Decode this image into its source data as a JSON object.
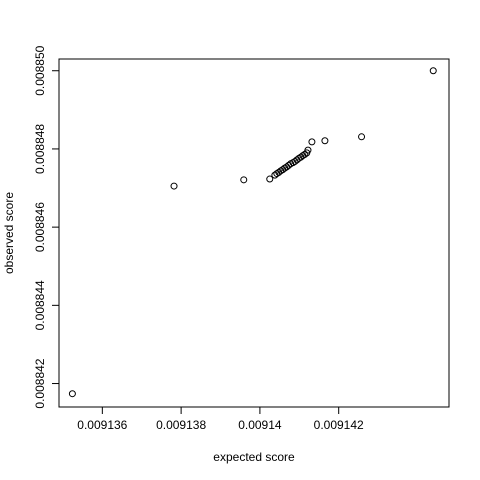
{
  "chart_data": {
    "type": "scatter",
    "xlabel": "expected score",
    "ylabel": "observed score",
    "x": [
      0.00913524,
      0.00913782,
      0.00913959,
      0.00914025,
      0.00914038,
      0.00914043,
      0.00914048,
      0.00914053,
      0.00914058,
      0.00914063,
      0.00914068,
      0.00914073,
      0.00914078,
      0.00914084,
      0.00914089,
      0.00914094,
      0.00914099,
      0.00914104,
      0.00914109,
      0.00914114,
      0.00914119,
      0.00914122,
      0.00914132,
      0.00914165,
      0.00914258,
      0.0091444
    ],
    "values": [
      0.00884174,
      0.00884705,
      0.00884721,
      0.00884723,
      0.00884733,
      0.00884737,
      0.0088474,
      0.00884744,
      0.00884747,
      0.00884751,
      0.00884754,
      0.00884758,
      0.00884762,
      0.00884765,
      0.00884768,
      0.00884772,
      0.00884776,
      0.00884779,
      0.00884783,
      0.00884786,
      0.0088479,
      0.00884797,
      0.00884818,
      0.00884821,
      0.00884831,
      0.00885
    ],
    "color": "#000000",
    "xlim": [
      0.0091349,
      0.0091448
    ],
    "ylim": [
      0.0088414,
      0.0088503
    ],
    "xticks": [
      0.009136,
      0.009138,
      0.00914,
      0.009142
    ],
    "yticks": [
      0.008842,
      0.008844,
      0.008846,
      0.008848,
      {
        "value": 0.00885,
        "label": "0.008850"
      }
    ],
    "grid": false
  }
}
